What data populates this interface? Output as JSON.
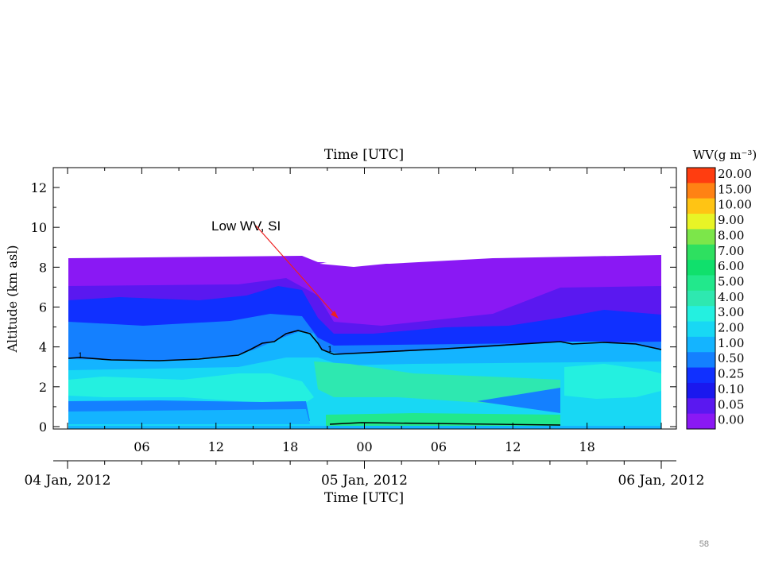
{
  "slide_number": "58",
  "chart_data": {
    "type": "heatmap",
    "title": "Time [UTC]",
    "xlabel": "Time [UTC]",
    "ylabel": "Altitude (km asl)",
    "ylim": [
      0,
      13
    ],
    "yticks": [
      "0",
      "2",
      "4",
      "6",
      "8",
      "10",
      "12"
    ],
    "xticks": [
      "06",
      "12",
      "18",
      "00",
      "06",
      "12",
      "18"
    ],
    "dates": [
      "04 Jan, 2012",
      "05 Jan, 2012",
      "06 Jan, 2012"
    ],
    "colorbar": {
      "title": "WV(g m⁻³)",
      "levels": [
        "20.00",
        "15.00",
        "10.00",
        "9.00",
        "8.00",
        "7.00",
        "6.00",
        "5.00",
        "4.00",
        "3.00",
        "2.00",
        "1.00",
        "0.50",
        "0.25",
        "0.10",
        "0.05",
        "0.00"
      ],
      "colors": [
        "#ff3d10",
        "#ff8214",
        "#ffc414",
        "#e8f426",
        "#7ce64a",
        "#2ee060",
        "#10e06c",
        "#22e88c",
        "#2ee8b0",
        "#24f0e0",
        "#18d8f4",
        "#14b4ff",
        "#1480ff",
        "#1030ff",
        "#1a18ee",
        "#5a18f0",
        "#8a18f4"
      ]
    },
    "contour_label": "1",
    "annotation": "Low WV, SI"
  },
  "colors": {
    "violet": "#8a18f4",
    "indigo": "#5a18f0",
    "blue": "#1030ff",
    "mid_blue": "#1480ff",
    "light_blue": "#14b4ff",
    "cyan": "#18d8f4",
    "aqua": "#24f0e0",
    "mint": "#2ee8b0",
    "green": "#22e88c",
    "arrow": "#ee2020"
  }
}
